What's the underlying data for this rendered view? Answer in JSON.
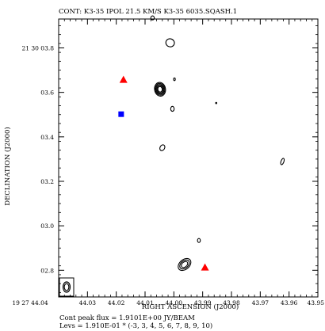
{
  "chart_data": {
    "type": "contour",
    "title": "CONT: K3-35  IPOL  21.5 KM/S  K3-35 6035.SQASH.1",
    "xlabel": "RIGHT ASCENSION (J2000)",
    "ylabel": "DECLINATION (J2000)",
    "x_axis": {
      "unit": "seconds of RA",
      "range": [
        44.04,
        43.95
      ],
      "ticks": [
        {
          "value": 44.04,
          "label": "19 27 44.04"
        },
        {
          "value": 44.03,
          "label": "44.03"
        },
        {
          "value": 44.02,
          "label": "44.02"
        },
        {
          "value": 44.01,
          "label": "44.01"
        },
        {
          "value": 44.0,
          "label": "44.00"
        },
        {
          "value": 43.99,
          "label": "43.99"
        },
        {
          "value": 43.98,
          "label": "43.98"
        },
        {
          "value": 43.97,
          "label": "43.97"
        },
        {
          "value": 43.96,
          "label": "43.96"
        },
        {
          "value": 43.95,
          "label": "43.95"
        }
      ]
    },
    "y_axis": {
      "unit": "arcsec of Dec",
      "range": [
        2.68,
        3.93
      ],
      "ticks": [
        {
          "value": 3.8,
          "label": "21 30 03.8"
        },
        {
          "value": 3.6,
          "label": "03.6"
        },
        {
          "value": 3.4,
          "label": "03.4"
        },
        {
          "value": 3.2,
          "label": "03.2"
        },
        {
          "value": 3.0,
          "label": "03.0"
        },
        {
          "value": 2.8,
          "label": "02.8"
        }
      ]
    },
    "contours": [
      {
        "x": 44.0048,
        "y": 3.614,
        "rx": 0.0019,
        "ry": 0.031,
        "levels": 5,
        "angle": -10
      },
      {
        "x": 44.0013,
        "y": 3.823,
        "rx": 0.0015,
        "ry": 0.018,
        "levels": 1,
        "angle": 20
      },
      {
        "x": 44.0005,
        "y": 3.526,
        "rx": 0.0006,
        "ry": 0.011,
        "levels": 1,
        "angle": 0
      },
      {
        "x": 44.004,
        "y": 3.351,
        "rx": 0.0008,
        "ry": 0.014,
        "levels": 1,
        "angle": 30
      },
      {
        "x": 43.9913,
        "y": 2.934,
        "rx": 0.0005,
        "ry": 0.009,
        "levels": 1,
        "angle": 0
      },
      {
        "x": 43.9963,
        "y": 2.826,
        "rx": 0.0025,
        "ry": 0.022,
        "levels": 3,
        "angle": -40
      },
      {
        "x": 43.9623,
        "y": 3.289,
        "rx": 0.0005,
        "ry": 0.015,
        "levels": 1,
        "angle": 20
      },
      {
        "x": 44.0074,
        "y": 3.935,
        "rx": 0.0006,
        "ry": 0.009,
        "levels": 1,
        "angle": 0
      },
      {
        "x": 43.9998,
        "y": 3.659,
        "rx": 0.0003,
        "ry": 0.006,
        "levels": 1,
        "angle": 0
      },
      {
        "x": 43.9853,
        "y": 3.552,
        "rx": 0.0002,
        "ry": 0.003,
        "levels": 1,
        "angle": 0
      }
    ],
    "markers": [
      {
        "shape": "triangle",
        "color": "#ff0000",
        "x": 44.0175,
        "y": 3.657
      },
      {
        "shape": "triangle",
        "color": "#ff0000",
        "x": 43.9892,
        "y": 2.813
      },
      {
        "shape": "square",
        "color": "#0000ff",
        "x": 44.0183,
        "y": 3.502
      }
    ],
    "beam": {
      "label": "beam",
      "levels": 2
    },
    "footer": [
      "Cont peak flux =  1.9101E+00 JY/BEAM",
      "Levs = 1.910E-01 * (-3, 3, 4, 5, 6, 7, 8, 9, 10)"
    ],
    "grid": false
  }
}
